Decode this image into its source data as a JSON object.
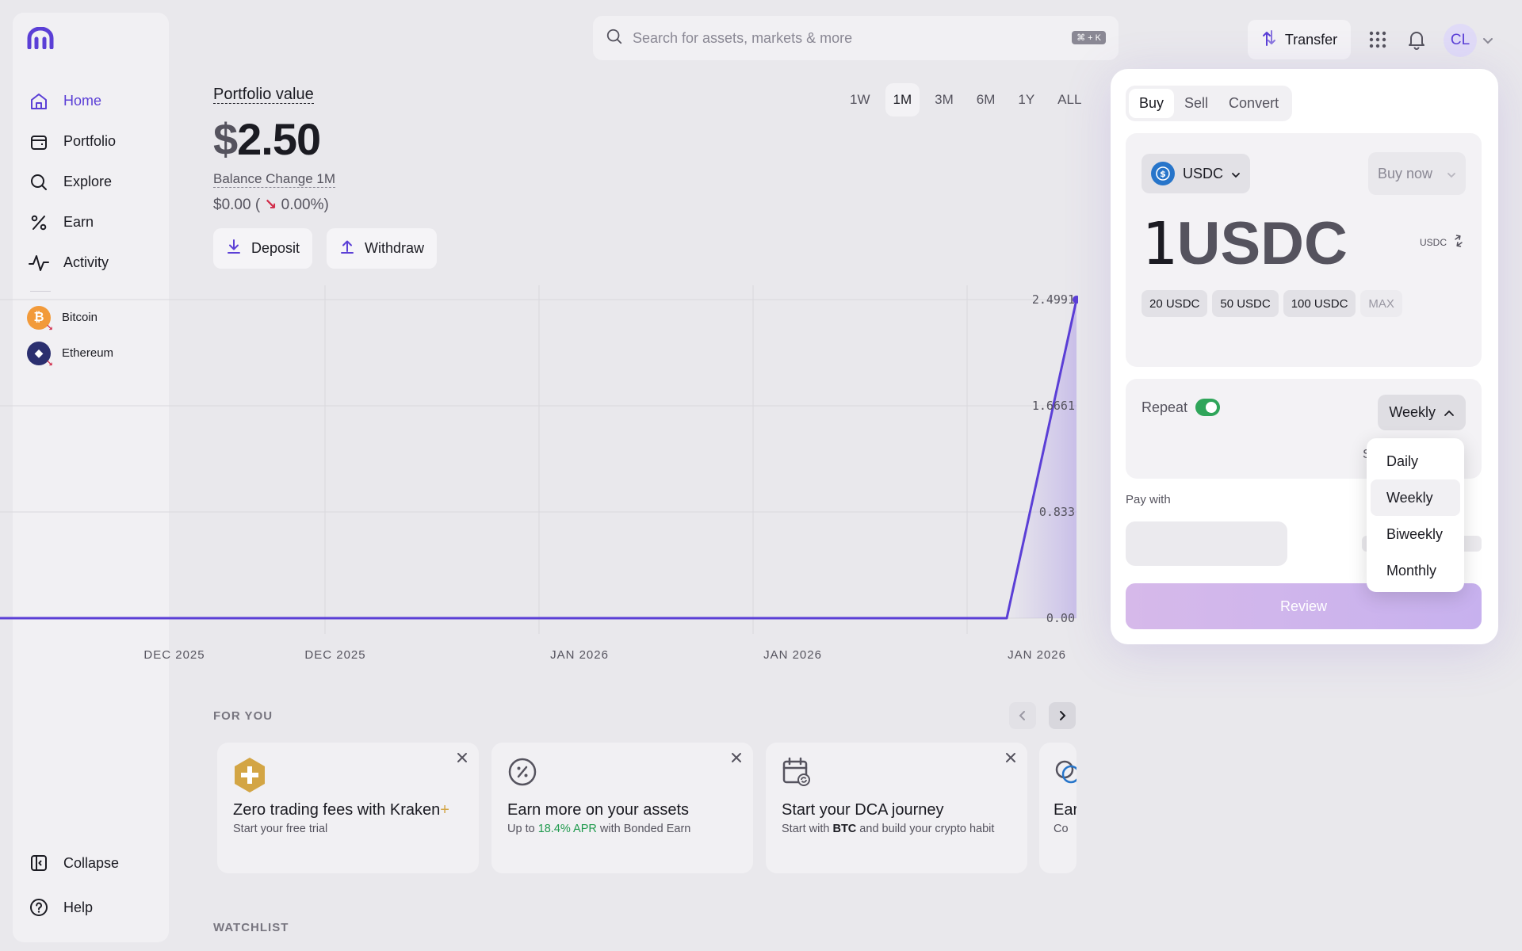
{
  "sidebar": {
    "items": [
      {
        "label": "Home",
        "icon": "home-icon"
      },
      {
        "label": "Portfolio",
        "icon": "wallet-icon"
      },
      {
        "label": "Explore",
        "icon": "search-icon"
      },
      {
        "label": "Earn",
        "icon": "percent-icon"
      },
      {
        "label": "Activity",
        "icon": "activity-icon"
      }
    ],
    "assets": [
      {
        "label": "Bitcoin",
        "color": "#f29a3a",
        "glyph": "₿"
      },
      {
        "label": "Ethereum",
        "color": "#2b2f6f",
        "glyph": "◆"
      }
    ],
    "collapse_label": "Collapse",
    "help_label": "Help"
  },
  "header": {
    "search_placeholder": "Search for assets, markets & more",
    "shortcut": "⌘ + K",
    "transfer_label": "Transfer",
    "avatar_initials": "CL"
  },
  "portfolio": {
    "title": "Portfolio value",
    "currency_symbol": "$",
    "value": "2.50",
    "balance_change_label": "Balance Change 1M",
    "balance_change_amount": "$0.00 (",
    "balance_change_arrow": "↘",
    "balance_change_percent": "0.00%)",
    "deposit_label": "Deposit",
    "withdraw_label": "Withdraw",
    "ranges": [
      "1W",
      "1M",
      "3M",
      "6M",
      "1Y",
      "ALL"
    ],
    "active_range": "1M"
  },
  "chart_data": {
    "type": "line",
    "x_tick_labels": [
      "DEC 2025",
      "DEC 2025",
      "JAN 2026",
      "JAN 2026",
      "JAN 2026"
    ],
    "y_tick_labels": [
      "2.4991",
      "1.6661",
      "0.833",
      "0.00"
    ],
    "series": [
      {
        "values": [
          0,
          0,
          0,
          0,
          0,
          0,
          0,
          2.4991
        ]
      }
    ],
    "ylim": [
      0,
      2.4991
    ],
    "line_color": "#5b3fd6",
    "grid": true
  },
  "for_you": {
    "title": "FOR YOU",
    "cards": [
      {
        "title": "Zero trading fees with Kraken",
        "title_accent": "+",
        "sub": "Start your free trial"
      },
      {
        "title": "Earn more on your assets",
        "sub_pre": "Up to ",
        "sub_highlight": "18.4% APR",
        "sub_post": " with Bonded Earn"
      },
      {
        "title": "Start your DCA journey",
        "sub_pre": "Start with ",
        "sub_highlight": "BTC",
        "sub_post": " and build your crypto habit"
      },
      {
        "title": "Ear",
        "sub": "Co"
      }
    ]
  },
  "watchlist": {
    "title": "WATCHLIST"
  },
  "trade": {
    "tabs": [
      "Buy",
      "Sell",
      "Convert"
    ],
    "active_tab": "Buy",
    "asset": "USDC",
    "order_type": "Buy now",
    "amount_number": "1",
    "amount_unit": "USDC",
    "unit_toggle": "USDC",
    "chips": [
      "20 USDC",
      "50 USDC",
      "100 USDC"
    ],
    "max_label": "MAX",
    "repeat_label": "Repeat",
    "repeat_enabled": true,
    "frequency": "Weekly",
    "frequency_options": [
      "Daily",
      "Weekly",
      "Biweekly",
      "Monthly"
    ],
    "partially_hidden_char": "S",
    "pay_with_label": "Pay with",
    "review_label": "Review"
  }
}
